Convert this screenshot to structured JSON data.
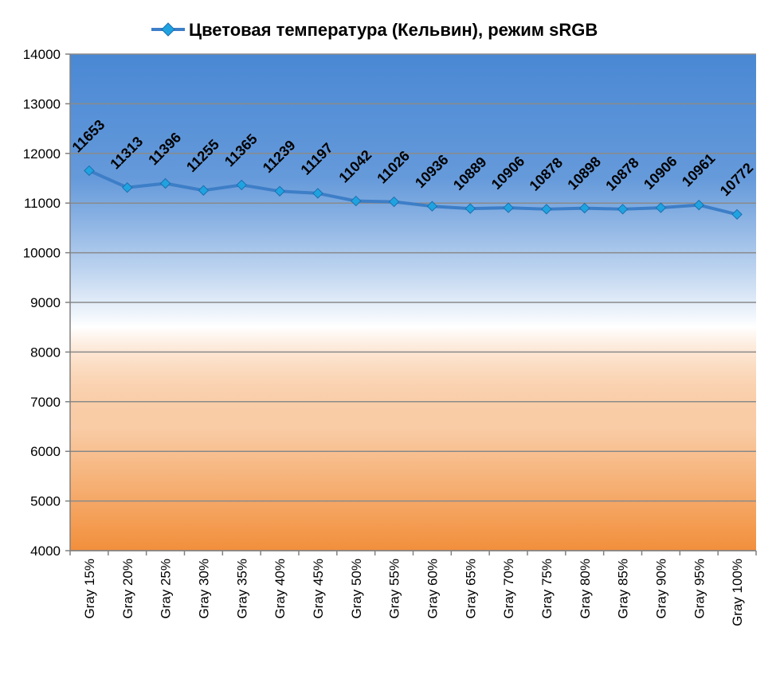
{
  "chart_data": {
    "type": "line",
    "categories": [
      "Gray 15%",
      "Gray 20%",
      "Gray 25%",
      "Gray 30%",
      "Gray 35%",
      "Gray 40%",
      "Gray 45%",
      "Gray 50%",
      "Gray 55%",
      "Gray 60%",
      "Gray 65%",
      "Gray 70%",
      "Gray 75%",
      "Gray 80%",
      "Gray 85%",
      "Gray 90%",
      "Gray 95%",
      "Gray 100%"
    ],
    "series": [
      {
        "name": "Цветовая температура (Кельвин), режим sRGB",
        "values": [
          11653,
          11313,
          11396,
          11255,
          11365,
          11239,
          11197,
          11042,
          11026,
          10936,
          10889,
          10906,
          10878,
          10898,
          10878,
          10906,
          10961,
          10772
        ],
        "color": "#3d7ec7",
        "marker_color": "#1fa3e0"
      }
    ],
    "ylim": [
      4000,
      14000
    ],
    "yticks": [
      "4000",
      "5000",
      "6000",
      "7000",
      "8000",
      "9000",
      "10000",
      "11000",
      "12000",
      "13000",
      "14000"
    ],
    "grid": true,
    "legend_position": "top",
    "data_labels": true,
    "background_gradient": {
      "top": "#4a88d4",
      "middle": "#ffffff",
      "bottom": "#f28f3b"
    }
  }
}
